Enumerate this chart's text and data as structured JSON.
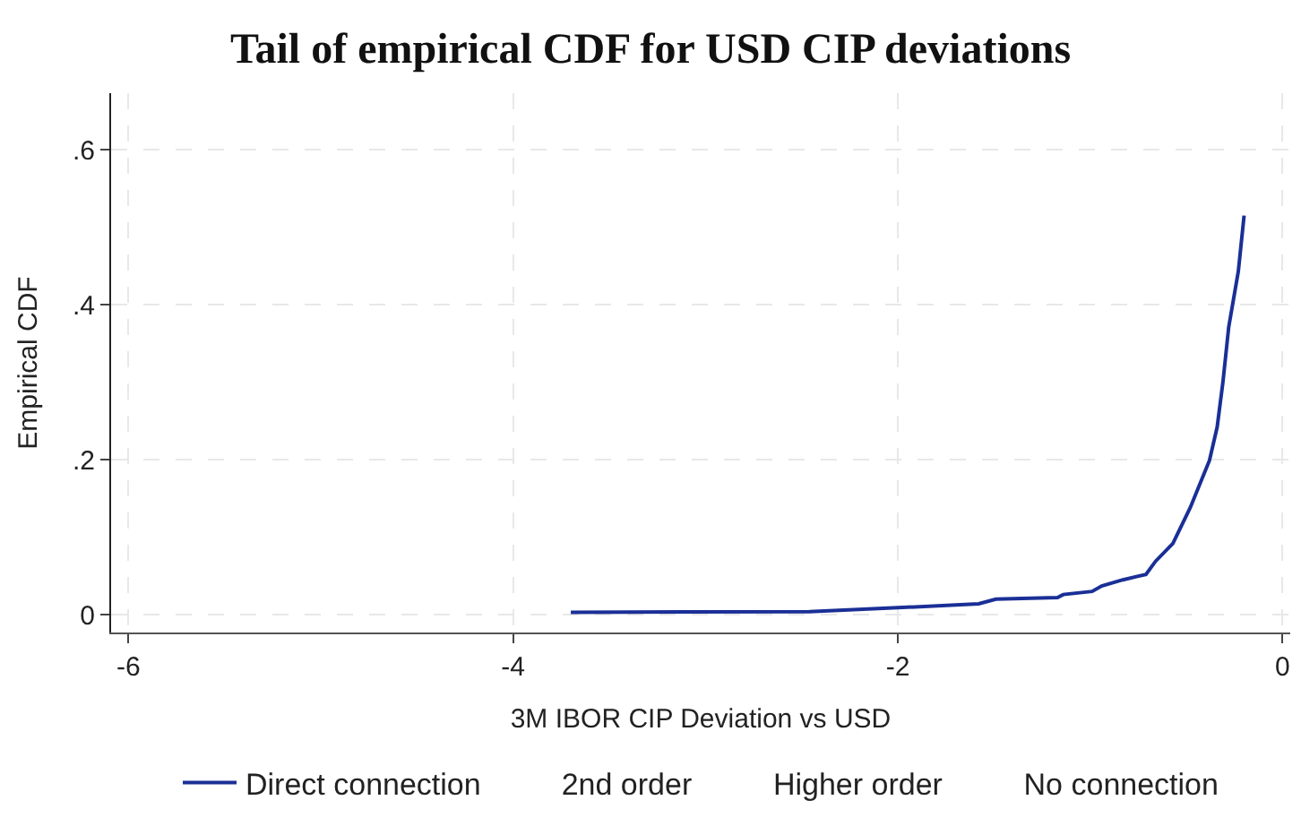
{
  "chart_data": {
    "type": "line",
    "title": "Tail of empirical CDF for USD CIP deviations",
    "xlabel": "3M IBOR CIP Deviation vs USD",
    "ylabel": "Empirical CDF",
    "series": [
      {
        "name": "Direct connection",
        "color": "#1a2f96",
        "x": [
          -3.7,
          -2.46,
          -2.0,
          -1.58,
          -1.49,
          -1.17,
          -1.14,
          -0.99,
          -0.94,
          -0.83,
          -0.71,
          -0.66,
          -0.57,
          -0.48,
          -0.38,
          -0.34,
          -0.31,
          -0.28,
          -0.23,
          -0.2
        ],
        "values": [
          0.003,
          0.004,
          0.009,
          0.014,
          0.02,
          0.022,
          0.026,
          0.03,
          0.037,
          0.045,
          0.052,
          0.069,
          0.092,
          0.138,
          0.199,
          0.242,
          0.3,
          0.371,
          0.443,
          0.515
        ]
      },
      {
        "name": "2nd order"
      },
      {
        "name": "Higher order"
      },
      {
        "name": "No connection"
      }
    ],
    "xlim": [
      -6.09,
      0.04
    ],
    "ylim": [
      -0.023,
      0.673
    ],
    "xticks": [
      -6,
      -4,
      -2,
      0
    ],
    "yticks": [
      {
        "value": 0,
        "label": "0"
      },
      {
        "value": 0.2,
        "label": ".2"
      },
      {
        "value": 0.4,
        "label": ".4"
      },
      {
        "value": 0.6,
        "label": ".6"
      }
    ],
    "grid": true,
    "legend": "bottom",
    "line_style": "solid",
    "marker": "none"
  }
}
